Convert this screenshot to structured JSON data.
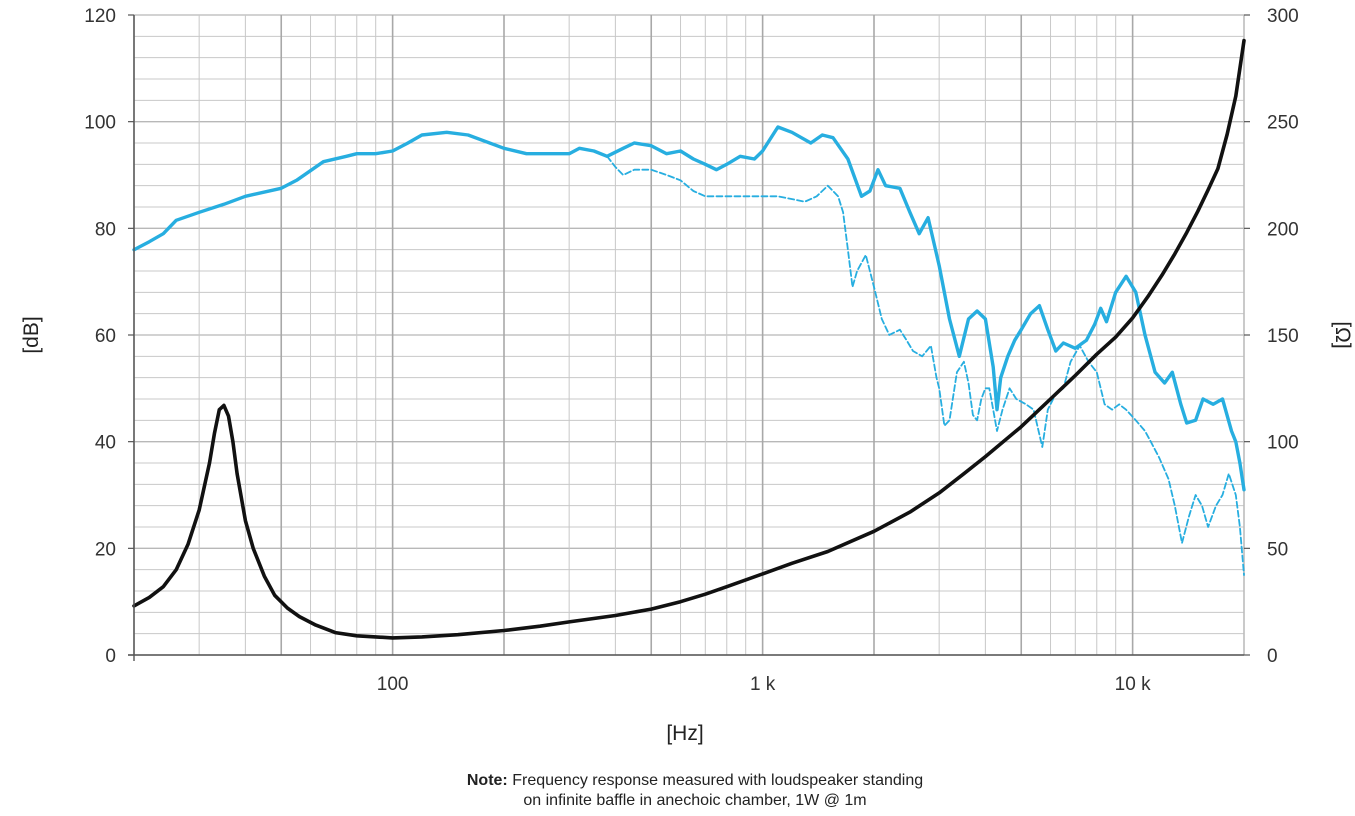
{
  "chart_data": {
    "type": "line",
    "xlabel": "[Hz]",
    "ylabel_left": "[dB]",
    "ylabel_right": "[Ω]",
    "x_scale": "log",
    "xlim": [
      20,
      20000
    ],
    "ylim_left": [
      0,
      120
    ],
    "ylim_right": [
      0,
      300
    ],
    "x_ticks": [
      {
        "value": 100,
        "label": "100"
      },
      {
        "value": 1000,
        "label": "1 k"
      },
      {
        "value": 10000,
        "label": "10 k"
      }
    ],
    "y_ticks_left": [
      "0",
      "20",
      "40",
      "60",
      "80",
      "100",
      "120"
    ],
    "y_ticks_right": [
      "0",
      "50",
      "100",
      "150",
      "200",
      "250",
      "300"
    ],
    "grid": true,
    "legend": "none",
    "colors": {
      "spl": "#27aee0",
      "impedance": "#111111",
      "grid": "#c8c8c8"
    },
    "series": [
      {
        "style": "solid",
        "axis": "left",
        "color": "#27aee0",
        "points": [
          [
            20,
            76
          ],
          [
            22,
            77.5
          ],
          [
            24,
            79
          ],
          [
            26,
            81.5
          ],
          [
            30,
            83
          ],
          [
            35,
            84.5
          ],
          [
            40,
            86
          ],
          [
            50,
            87.5
          ],
          [
            55,
            89
          ],
          [
            65,
            92.5
          ],
          [
            75,
            93.5
          ],
          [
            80,
            94
          ],
          [
            90,
            94
          ],
          [
            100,
            94.5
          ],
          [
            110,
            96
          ],
          [
            120,
            97.5
          ],
          [
            140,
            98
          ],
          [
            160,
            97.5
          ],
          [
            200,
            95
          ],
          [
            230,
            94
          ],
          [
            260,
            94
          ],
          [
            300,
            94
          ],
          [
            320,
            95
          ],
          [
            350,
            94.5
          ],
          [
            380,
            93.5
          ],
          [
            420,
            95
          ],
          [
            450,
            96
          ],
          [
            500,
            95.5
          ],
          [
            550,
            94
          ],
          [
            600,
            94.5
          ],
          [
            650,
            93
          ],
          [
            700,
            92
          ],
          [
            750,
            91
          ],
          [
            800,
            92
          ],
          [
            870,
            93.5
          ],
          [
            950,
            93
          ],
          [
            1000,
            94.5
          ],
          [
            1100,
            99
          ],
          [
            1200,
            98
          ],
          [
            1350,
            96
          ],
          [
            1450,
            97.5
          ],
          [
            1550,
            97
          ],
          [
            1700,
            93
          ],
          [
            1850,
            86
          ],
          [
            1950,
            87
          ],
          [
            2050,
            91
          ],
          [
            2150,
            88
          ],
          [
            2350,
            87.5
          ],
          [
            2500,
            83
          ],
          [
            2650,
            79
          ],
          [
            2800,
            82
          ],
          [
            3000,
            73
          ],
          [
            3200,
            63
          ],
          [
            3400,
            56
          ],
          [
            3600,
            63
          ],
          [
            3800,
            64.5
          ],
          [
            4000,
            63
          ],
          [
            4200,
            54
          ],
          [
            4300,
            46
          ],
          [
            4400,
            52
          ],
          [
            4600,
            56
          ],
          [
            4800,
            59
          ],
          [
            5000,
            61
          ],
          [
            5300,
            64
          ],
          [
            5600,
            65.5
          ],
          [
            5900,
            61
          ],
          [
            6200,
            57
          ],
          [
            6500,
            58.5
          ],
          [
            7000,
            57.5
          ],
          [
            7500,
            59
          ],
          [
            7900,
            62
          ],
          [
            8200,
            65
          ],
          [
            8500,
            62.5
          ],
          [
            9000,
            68
          ],
          [
            9600,
            71
          ],
          [
            10200,
            68
          ],
          [
            10800,
            60
          ],
          [
            11500,
            53
          ],
          [
            12200,
            51
          ],
          [
            12800,
            53
          ],
          [
            13500,
            47
          ],
          [
            14000,
            43.5
          ],
          [
            14800,
            44
          ],
          [
            15500,
            48
          ],
          [
            16500,
            47
          ],
          [
            17500,
            48
          ],
          [
            18500,
            42
          ],
          [
            19000,
            40
          ],
          [
            19500,
            36
          ],
          [
            20000,
            31
          ]
        ]
      },
      {
        "style": "dashed",
        "axis": "left",
        "color": "#27aee0",
        "points": [
          [
            380,
            93.5
          ],
          [
            400,
            91.5
          ],
          [
            420,
            90
          ],
          [
            450,
            91
          ],
          [
            500,
            91
          ],
          [
            550,
            90
          ],
          [
            600,
            89
          ],
          [
            650,
            87
          ],
          [
            700,
            86
          ],
          [
            800,
            86
          ],
          [
            900,
            86
          ],
          [
            1000,
            86
          ],
          [
            1100,
            86
          ],
          [
            1300,
            85
          ],
          [
            1400,
            86
          ],
          [
            1500,
            88
          ],
          [
            1600,
            86
          ],
          [
            1650,
            83
          ],
          [
            1700,
            76
          ],
          [
            1750,
            69
          ],
          [
            1800,
            72
          ],
          [
            1900,
            75
          ],
          [
            2000,
            69
          ],
          [
            2100,
            63
          ],
          [
            2200,
            60
          ],
          [
            2350,
            61
          ],
          [
            2450,
            59
          ],
          [
            2550,
            57
          ],
          [
            2700,
            56
          ],
          [
            2850,
            58
          ],
          [
            2950,
            52
          ],
          [
            3000,
            50
          ],
          [
            3100,
            43
          ],
          [
            3200,
            44
          ],
          [
            3350,
            53
          ],
          [
            3500,
            55
          ],
          [
            3600,
            51
          ],
          [
            3700,
            45
          ],
          [
            3800,
            44
          ],
          [
            3900,
            48
          ],
          [
            4000,
            50
          ],
          [
            4100,
            50
          ],
          [
            4200,
            46
          ],
          [
            4300,
            42
          ],
          [
            4450,
            46
          ],
          [
            4650,
            50
          ],
          [
            4850,
            48
          ],
          [
            5150,
            47
          ],
          [
            5400,
            46
          ],
          [
            5700,
            39
          ],
          [
            5900,
            46
          ],
          [
            6200,
            49
          ],
          [
            6500,
            50
          ],
          [
            6800,
            55
          ],
          [
            7200,
            58
          ],
          [
            7600,
            55
          ],
          [
            8000,
            53
          ],
          [
            8400,
            47
          ],
          [
            8800,
            46
          ],
          [
            9200,
            47
          ],
          [
            9600,
            46
          ],
          [
            10200,
            44
          ],
          [
            10800,
            42
          ],
          [
            11200,
            40
          ],
          [
            11800,
            37
          ],
          [
            12500,
            33
          ],
          [
            13000,
            28
          ],
          [
            13600,
            21
          ],
          [
            14200,
            26
          ],
          [
            14800,
            30
          ],
          [
            15400,
            28
          ],
          [
            16000,
            24
          ],
          [
            16800,
            28
          ],
          [
            17500,
            30
          ],
          [
            18200,
            34
          ],
          [
            19000,
            30
          ],
          [
            19500,
            24
          ],
          [
            20000,
            15
          ]
        ]
      },
      {
        "style": "solid",
        "axis": "right",
        "color": "#111111",
        "points": [
          [
            20,
            23
          ],
          [
            22,
            27
          ],
          [
            24,
            32
          ],
          [
            26,
            40
          ],
          [
            28,
            52
          ],
          [
            30,
            68
          ],
          [
            32,
            90
          ],
          [
            33,
            104
          ],
          [
            34,
            115
          ],
          [
            35,
            117
          ],
          [
            36,
            112
          ],
          [
            37,
            100
          ],
          [
            38,
            85
          ],
          [
            40,
            63
          ],
          [
            42,
            50
          ],
          [
            45,
            37
          ],
          [
            48,
            28
          ],
          [
            52,
            22
          ],
          [
            56,
            18
          ],
          [
            62,
            14
          ],
          [
            70,
            10.5
          ],
          [
            80,
            9
          ],
          [
            90,
            8.5
          ],
          [
            100,
            8
          ],
          [
            120,
            8.5
          ],
          [
            150,
            9.5
          ],
          [
            200,
            11.5
          ],
          [
            250,
            13.5
          ],
          [
            300,
            15.5
          ],
          [
            400,
            18.5
          ],
          [
            500,
            21.5
          ],
          [
            600,
            25
          ],
          [
            700,
            28.5
          ],
          [
            800,
            32
          ],
          [
            1000,
            38
          ],
          [
            1200,
            43
          ],
          [
            1500,
            48.5
          ],
          [
            2000,
            58
          ],
          [
            2500,
            67
          ],
          [
            3000,
            76
          ],
          [
            3500,
            85
          ],
          [
            4000,
            93
          ],
          [
            5000,
            107
          ],
          [
            6000,
            120
          ],
          [
            7000,
            131
          ],
          [
            8000,
            141
          ],
          [
            9000,
            149
          ],
          [
            10000,
            158
          ],
          [
            11000,
            168
          ],
          [
            12000,
            178
          ],
          [
            13000,
            188
          ],
          [
            14000,
            198
          ],
          [
            15000,
            208
          ],
          [
            16000,
            218
          ],
          [
            17000,
            228
          ],
          [
            18000,
            244
          ],
          [
            19000,
            262
          ],
          [
            20000,
            288
          ]
        ]
      }
    ]
  },
  "note": {
    "bold": "Note:",
    "line1": "Frequency response measured with loudspeaker standing",
    "line2": "on infinite baffle in anechoic chamber, 1W @ 1m"
  }
}
